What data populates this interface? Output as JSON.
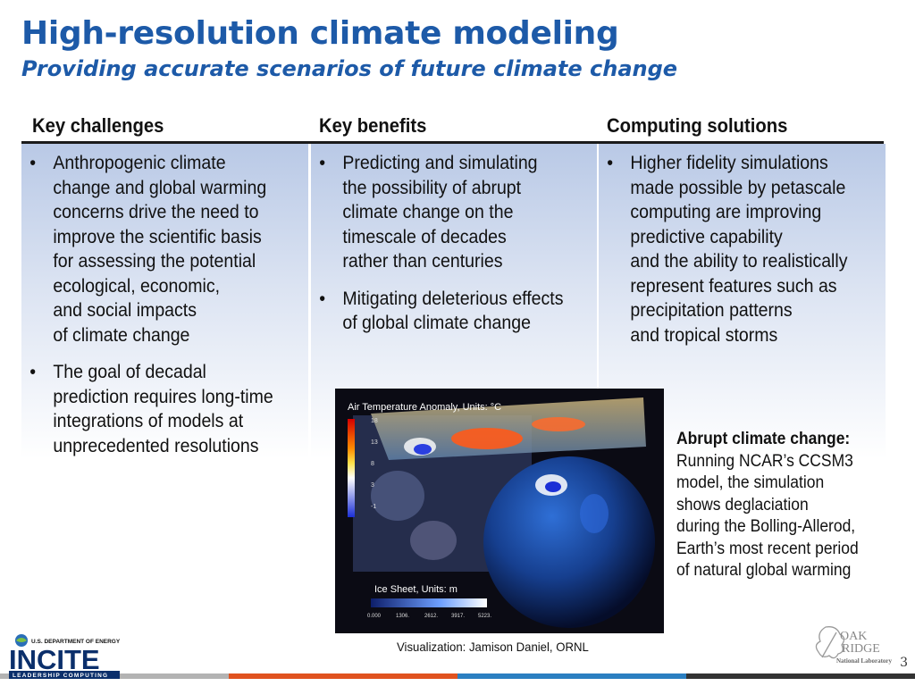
{
  "slide": {
    "title": "High-resolution climate modeling",
    "subtitle": "Providing accurate scenarios of future climate change",
    "page_number": "3"
  },
  "table": {
    "columns": [
      {
        "header": "Key challenges",
        "bullets": [
          [
            "Anthropogenic climate",
            "change and global warming",
            "concerns drive the need to",
            "improve the scientific basis",
            "for assessing the potential",
            "ecological, economic,",
            "and social impacts",
            "of climate change"
          ],
          [
            "The goal of decadal",
            "prediction requires long-time",
            "integrations of models at",
            "unprecedented resolutions"
          ]
        ]
      },
      {
        "header": "Key benefits",
        "bullets": [
          [
            "Predicting and simulating",
            "the possibility of abrupt",
            "climate change on the",
            "timescale of decades",
            "rather than centuries"
          ],
          [
            "Mitigating deleterious effects",
            "of global climate change"
          ]
        ]
      },
      {
        "header": "Computing solutions",
        "bullets": [
          [
            "Higher fidelity simulations",
            "made possible by petascale",
            "computing are improving",
            "predictive capability",
            "and the ability to realistically",
            "represent features such as",
            "precipitation patterns",
            "and tropical storms"
          ]
        ]
      }
    ]
  },
  "visualization": {
    "temp_label": "Air Temperature Anomaly, Units: °C",
    "temp_ticks": [
      "18",
      "13",
      "8",
      "3",
      "-1"
    ],
    "ice_label": "Ice Sheet, Units: m",
    "ice_ticks": [
      "0.000",
      "1306.",
      "2612.",
      "3917.",
      "5223."
    ],
    "credit": "Visualization: Jamison Daniel, ORNL"
  },
  "caption": {
    "heading": "Abrupt climate change:",
    "body": "Running NCAR’s CCSM3\nmodel, the simulation\nshows deglaciation\nduring the Bolling-Allerod,\nEarth’s most recent period\nof natural global warming"
  },
  "logos": {
    "incite_top": "U.S. DEPARTMENT OF ENERGY",
    "incite_main": "INCITE",
    "incite_bottom": "LEADERSHIP COMPUTING",
    "ornl_line1": "OAK",
    "ornl_line2": "RIDGE",
    "ornl_line3": "National Laboratory"
  },
  "colors": {
    "title": "#1d5aa8",
    "footer_gray": "#b3b3b3",
    "footer_orange": "#e0521f",
    "footer_blue": "#2b7fc1",
    "footer_dark": "#333333"
  }
}
